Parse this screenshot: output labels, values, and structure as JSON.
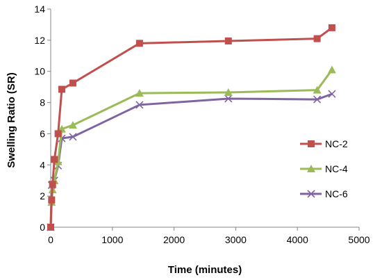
{
  "chart_data": {
    "type": "line",
    "xlabel": "Time (minutes)",
    "ylabel": "Swelling Ratio (SR)",
    "xlim": [
      0,
      5000
    ],
    "ylim": [
      0,
      14
    ],
    "xticks": [
      0,
      1000,
      2000,
      3000,
      4000,
      5000
    ],
    "yticks": [
      0,
      2,
      4,
      6,
      8,
      10,
      12,
      14
    ],
    "grid": false,
    "legend_position": "right",
    "series": [
      {
        "name": "NC-2",
        "color": "#C0504D",
        "marker": "square",
        "x": [
          0,
          15,
          30,
          60,
          120,
          180,
          360,
          1440,
          2880,
          4320,
          4560
        ],
        "y": [
          0,
          1.75,
          2.75,
          4.35,
          6.0,
          8.85,
          9.25,
          11.8,
          11.95,
          12.1,
          12.8
        ]
      },
      {
        "name": "NC-4",
        "color": "#9BBB59",
        "marker": "triangle",
        "x": [
          0,
          15,
          30,
          60,
          120,
          180,
          360,
          1440,
          2880,
          4320,
          4560
        ],
        "y": [
          0,
          1.6,
          2.4,
          3.0,
          4.2,
          6.3,
          6.55,
          8.6,
          8.65,
          8.8,
          10.1
        ]
      },
      {
        "name": "NC-6",
        "color": "#8064A2",
        "marker": "x",
        "x": [
          0,
          15,
          30,
          60,
          120,
          180,
          360,
          1440,
          2880,
          4320,
          4560
        ],
        "y": [
          0,
          2.7,
          2.75,
          3.0,
          3.95,
          5.7,
          5.8,
          7.85,
          8.25,
          8.2,
          8.55
        ]
      }
    ]
  }
}
